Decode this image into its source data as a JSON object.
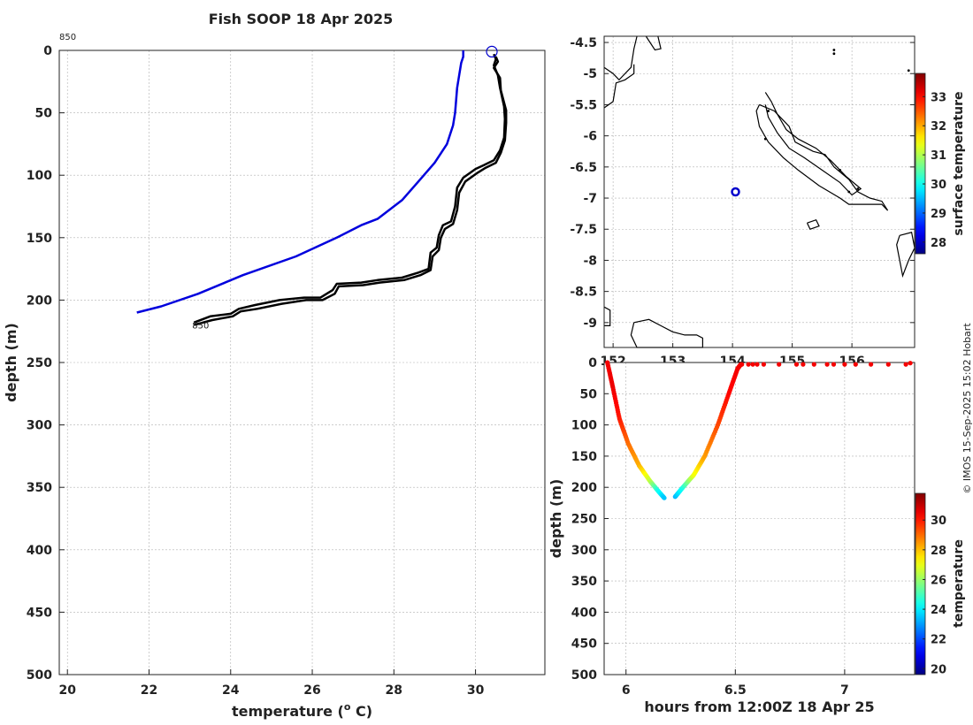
{
  "title": "Fish SOOP 18 Apr 2025",
  "credit": "© IMOS 15-Sep-2025 15:02 Hobart",
  "colors": {
    "profile": "#000000",
    "climatology": "#0000dd",
    "marker": "#0000cc",
    "grid": "#b0b0b0",
    "coast": "#000000"
  },
  "chart_data": [
    {
      "id": "profile",
      "type": "line",
      "xlabel": "temperature (° C)",
      "xlabel_main": "temperature (",
      "xlabel_sup": "o",
      "xlabel_tail": " C)",
      "ylabel": "depth (m)",
      "xlim": [
        19.8,
        31.7
      ],
      "ylim": [
        500,
        0
      ],
      "xticks": [
        20,
        22,
        24,
        26,
        28,
        30
      ],
      "yticks": [
        0,
        50,
        100,
        150,
        200,
        250,
        300,
        350,
        400,
        450,
        500
      ],
      "grid": true,
      "label_top": "850",
      "label_bottom": "850",
      "label_bottom_at": [
        23.1,
        220
      ],
      "label_top_at": [
        19.8,
        0
      ],
      "series": [
        {
          "name": "climatology",
          "color": "#0000dd",
          "points": [
            [
              29.7,
              0
            ],
            [
              29.7,
              5
            ],
            [
              29.65,
              10
            ],
            [
              29.6,
              20
            ],
            [
              29.55,
              30
            ],
            [
              29.5,
              50
            ],
            [
              29.45,
              60
            ],
            [
              29.3,
              75
            ],
            [
              29.0,
              90
            ],
            [
              28.6,
              105
            ],
            [
              28.2,
              120
            ],
            [
              27.6,
              135
            ],
            [
              27.2,
              140
            ],
            [
              26.6,
              150
            ],
            [
              25.6,
              165
            ],
            [
              24.3,
              180
            ],
            [
              23.2,
              195
            ],
            [
              22.3,
              205
            ],
            [
              21.7,
              210
            ]
          ]
        },
        {
          "name": "profile-a",
          "color": "#000000",
          "points": [
            [
              30.45,
              3
            ],
            [
              30.5,
              7
            ],
            [
              30.45,
              12
            ],
            [
              30.55,
              20
            ],
            [
              30.6,
              30
            ],
            [
              30.7,
              45
            ],
            [
              30.72,
              55
            ],
            [
              30.7,
              70
            ],
            [
              30.6,
              80
            ],
            [
              30.45,
              88
            ],
            [
              30.2,
              92
            ],
            [
              30.0,
              95
            ],
            [
              29.7,
              102
            ],
            [
              29.55,
              110
            ],
            [
              29.5,
              125
            ],
            [
              29.4,
              137
            ],
            [
              29.2,
              140
            ],
            [
              29.1,
              148
            ],
            [
              29.05,
              158
            ],
            [
              28.9,
              162
            ],
            [
              28.85,
              175
            ],
            [
              28.6,
              178
            ],
            [
              28.2,
              182
            ],
            [
              27.6,
              184
            ],
            [
              27.2,
              186
            ],
            [
              26.6,
              187
            ],
            [
              26.5,
              192
            ],
            [
              26.2,
              198
            ],
            [
              25.8,
              198
            ],
            [
              25.2,
              200
            ],
            [
              24.6,
              204
            ],
            [
              24.2,
              207
            ],
            [
              24.0,
              211
            ],
            [
              23.5,
              213
            ],
            [
              23.1,
              218
            ]
          ]
        },
        {
          "name": "profile-b",
          "color": "#000000",
          "points": [
            [
              30.5,
              5
            ],
            [
              30.55,
              9
            ],
            [
              30.45,
              14
            ],
            [
              30.6,
              22
            ],
            [
              30.62,
              32
            ],
            [
              30.75,
              48
            ],
            [
              30.75,
              58
            ],
            [
              30.72,
              72
            ],
            [
              30.62,
              82
            ],
            [
              30.5,
              90
            ],
            [
              30.25,
              94
            ],
            [
              30.05,
              98
            ],
            [
              29.75,
              105
            ],
            [
              29.6,
              114
            ],
            [
              29.55,
              128
            ],
            [
              29.45,
              139
            ],
            [
              29.25,
              143
            ],
            [
              29.15,
              150
            ],
            [
              29.1,
              160
            ],
            [
              28.95,
              165
            ],
            [
              28.9,
              176
            ],
            [
              28.65,
              180
            ],
            [
              28.25,
              184
            ],
            [
              27.65,
              186
            ],
            [
              27.25,
              188
            ],
            [
              26.65,
              189
            ],
            [
              26.55,
              195
            ],
            [
              26.25,
              200
            ],
            [
              25.85,
              200
            ],
            [
              25.25,
              203
            ],
            [
              24.65,
              207
            ],
            [
              24.25,
              209
            ],
            [
              24.05,
              213
            ],
            [
              23.55,
              216
            ],
            [
              23.1,
              220
            ]
          ]
        }
      ],
      "marker": {
        "x": 30.4,
        "y": 1
      }
    },
    {
      "id": "map",
      "type": "scatter",
      "colorbar_label": "surface temperature",
      "xlim": [
        151.85,
        157.05
      ],
      "ylim": [
        -9.4,
        -4.4
      ],
      "xticks": [
        152,
        153,
        154,
        155,
        156
      ],
      "yticks": [
        -4.5,
        -5,
        -5.5,
        -6,
        -6.5,
        -7,
        -7.5,
        -8,
        -8.5,
        -9
      ],
      "ytick_labels": [
        "-4.5",
        "-5",
        "-5.5",
        "-6",
        "-6.5",
        "-7",
        "-7.5",
        "-8",
        "-8.5",
        "-9"
      ],
      "grid": true,
      "colorbar_range": [
        27.6,
        33.8
      ],
      "colorbar_ticks": [
        28,
        29,
        30,
        31,
        32,
        33
      ],
      "position": {
        "lon": 154.05,
        "lat": -6.9
      }
    },
    {
      "id": "timeseries",
      "type": "scatter",
      "xlabel": "hours from 12:00Z 18 Apr 25",
      "ylabel": "depth (m)",
      "colorbar_label": "temperature",
      "xlim": [
        5.9,
        7.32
      ],
      "ylim": [
        500,
        0
      ],
      "xticks": [
        6,
        6.5,
        7
      ],
      "yticks": [
        0,
        50,
        100,
        150,
        200,
        250,
        300,
        350,
        400,
        450,
        500
      ],
      "grid": true,
      "colorbar_range": [
        19.6,
        31.8
      ],
      "colorbar_ticks": [
        20,
        22,
        24,
        26,
        28,
        30
      ],
      "down_cast": [
        [
          5.915,
          0,
          30.4
        ],
        [
          5.94,
          40,
          30.5
        ],
        [
          5.97,
          90,
          30.0
        ],
        [
          6.01,
          130,
          29.0
        ],
        [
          6.06,
          165,
          28.2
        ],
        [
          6.11,
          190,
          26.5
        ],
        [
          6.145,
          205,
          24.5
        ],
        [
          6.175,
          217,
          23.5
        ]
      ],
      "up_cast": [
        [
          6.225,
          215,
          23.3
        ],
        [
          6.26,
          200,
          24.5
        ],
        [
          6.31,
          180,
          27.0
        ],
        [
          6.36,
          150,
          28.4
        ],
        [
          6.42,
          100,
          29.4
        ],
        [
          6.47,
          50,
          30.2
        ],
        [
          6.51,
          10,
          30.4
        ],
        [
          6.525,
          3,
          30.4
        ]
      ],
      "surface": [
        [
          6.53,
          3,
          30.4
        ],
        [
          6.56,
          3,
          30.4
        ],
        [
          6.58,
          3,
          30.4
        ],
        [
          6.6,
          3,
          30.4
        ],
        [
          6.63,
          3,
          30.4
        ],
        [
          6.7,
          3,
          30.4
        ],
        [
          6.78,
          3,
          30.4
        ],
        [
          6.81,
          3,
          30.4
        ],
        [
          6.86,
          3,
          30.4
        ],
        [
          6.92,
          3,
          30.4
        ],
        [
          6.95,
          3,
          30.4
        ],
        [
          7.0,
          3,
          30.4
        ],
        [
          7.05,
          3,
          30.4
        ],
        [
          7.12,
          3,
          30.4
        ],
        [
          7.2,
          3,
          30.4
        ],
        [
          7.28,
          3,
          30.4
        ],
        [
          7.3,
          1,
          30.4
        ]
      ]
    }
  ]
}
